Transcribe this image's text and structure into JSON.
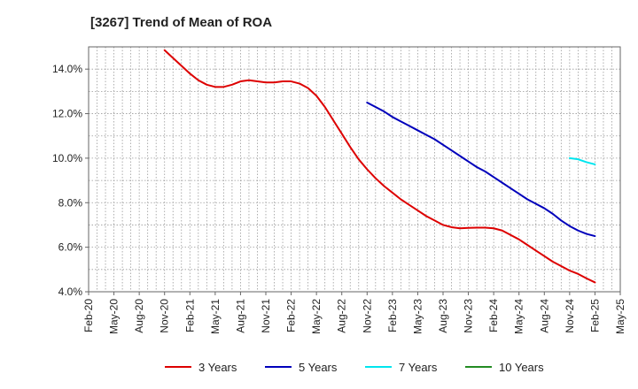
{
  "chart_data": {
    "type": "line",
    "title": "[3267]  Trend of Mean of ROA",
    "xlabel": "",
    "ylabel": "",
    "x_ticks": [
      "Feb-20",
      "May-20",
      "Aug-20",
      "Nov-20",
      "Feb-21",
      "May-21",
      "Aug-21",
      "Nov-21",
      "Feb-22",
      "May-22",
      "Aug-22",
      "Nov-22",
      "Feb-23",
      "May-23",
      "Aug-23",
      "Nov-23",
      "Feb-24",
      "May-24",
      "Aug-24",
      "Nov-24",
      "Feb-25",
      "May-25"
    ],
    "y_ticks": [
      "4.0%",
      "6.0%",
      "8.0%",
      "10.0%",
      "12.0%",
      "14.0%"
    ],
    "ylim": [
      4.0,
      15.0
    ],
    "grid": true,
    "legend_position": "bottom",
    "series": [
      {
        "name": "3 Years",
        "color": "#dd0000",
        "points": [
          [
            "Nov-20",
            14.85
          ],
          [
            "Dec-20",
            14.5
          ],
          [
            "Jan-21",
            14.15
          ],
          [
            "Feb-21",
            13.8
          ],
          [
            "Mar-21",
            13.5
          ],
          [
            "Apr-21",
            13.3
          ],
          [
            "May-21",
            13.2
          ],
          [
            "Jun-21",
            13.2
          ],
          [
            "Jul-21",
            13.3
          ],
          [
            "Aug-21",
            13.45
          ],
          [
            "Sep-21",
            13.5
          ],
          [
            "Oct-21",
            13.45
          ],
          [
            "Nov-21",
            13.4
          ],
          [
            "Dec-21",
            13.4
          ],
          [
            "Jan-22",
            13.45
          ],
          [
            "Feb-22",
            13.45
          ],
          [
            "Mar-22",
            13.35
          ],
          [
            "Apr-22",
            13.15
          ],
          [
            "May-22",
            12.8
          ],
          [
            "Jun-22",
            12.3
          ],
          [
            "Jul-22",
            11.7
          ],
          [
            "Aug-22",
            11.1
          ],
          [
            "Sep-22",
            10.5
          ],
          [
            "Oct-22",
            9.95
          ],
          [
            "Nov-22",
            9.5
          ],
          [
            "Dec-22",
            9.1
          ],
          [
            "Jan-23",
            8.75
          ],
          [
            "Feb-23",
            8.45
          ],
          [
            "Mar-23",
            8.15
          ],
          [
            "Apr-23",
            7.9
          ],
          [
            "May-23",
            7.65
          ],
          [
            "Jun-23",
            7.4
          ],
          [
            "Jul-23",
            7.2
          ],
          [
            "Aug-23",
            7.0
          ],
          [
            "Sep-23",
            6.9
          ],
          [
            "Oct-23",
            6.85
          ],
          [
            "Nov-23",
            6.87
          ],
          [
            "Dec-23",
            6.88
          ],
          [
            "Jan-24",
            6.88
          ],
          [
            "Feb-24",
            6.85
          ],
          [
            "Mar-24",
            6.75
          ],
          [
            "Apr-24",
            6.55
          ],
          [
            "May-24",
            6.35
          ],
          [
            "Jun-24",
            6.1
          ],
          [
            "Jul-24",
            5.85
          ],
          [
            "Aug-24",
            5.6
          ],
          [
            "Sep-24",
            5.35
          ],
          [
            "Oct-24",
            5.15
          ],
          [
            "Nov-24",
            4.95
          ],
          [
            "Dec-24",
            4.8
          ],
          [
            "Jan-25",
            4.6
          ],
          [
            "Feb-25",
            4.42
          ]
        ]
      },
      {
        "name": "5 Years",
        "color": "#0000bb",
        "points": [
          [
            "Nov-22",
            12.5
          ],
          [
            "Dec-22",
            12.3
          ],
          [
            "Jan-23",
            12.1
          ],
          [
            "Feb-23",
            11.85
          ],
          [
            "Mar-23",
            11.65
          ],
          [
            "Apr-23",
            11.45
          ],
          [
            "May-23",
            11.25
          ],
          [
            "Jun-23",
            11.05
          ],
          [
            "Jul-23",
            10.85
          ],
          [
            "Aug-23",
            10.6
          ],
          [
            "Sep-23",
            10.35
          ],
          [
            "Oct-23",
            10.1
          ],
          [
            "Nov-23",
            9.85
          ],
          [
            "Dec-23",
            9.6
          ],
          [
            "Jan-24",
            9.4
          ],
          [
            "Feb-24",
            9.15
          ],
          [
            "Mar-24",
            8.9
          ],
          [
            "Apr-24",
            8.65
          ],
          [
            "May-24",
            8.4
          ],
          [
            "Jun-24",
            8.15
          ],
          [
            "Jul-24",
            7.95
          ],
          [
            "Aug-24",
            7.75
          ],
          [
            "Sep-24",
            7.5
          ],
          [
            "Oct-24",
            7.2
          ],
          [
            "Nov-24",
            6.95
          ],
          [
            "Dec-24",
            6.75
          ],
          [
            "Jan-25",
            6.6
          ],
          [
            "Feb-25",
            6.5
          ]
        ]
      },
      {
        "name": "7 Years",
        "color": "#00e5ee",
        "points": [
          [
            "Nov-24",
            10.0
          ],
          [
            "Dec-24",
            9.95
          ],
          [
            "Jan-25",
            9.82
          ],
          [
            "Feb-25",
            9.72
          ]
        ]
      },
      {
        "name": "10 Years",
        "color": "#228b22",
        "points": []
      }
    ]
  }
}
